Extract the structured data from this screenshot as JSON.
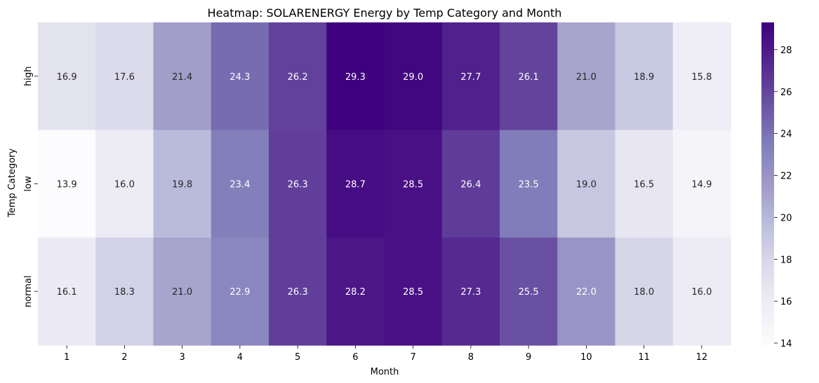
{
  "chart_data": {
    "type": "heatmap",
    "title": "Heatmap: SOLARENERGY Energy by Temp Category and Month",
    "xlabel": "Month",
    "ylabel": "Temp Category",
    "x_categories": [
      "1",
      "2",
      "3",
      "4",
      "5",
      "6",
      "7",
      "8",
      "9",
      "10",
      "11",
      "12"
    ],
    "y_categories": [
      "high",
      "low",
      "normal"
    ],
    "values": [
      [
        16.9,
        17.6,
        21.4,
        24.3,
        26.2,
        29.3,
        29.0,
        27.7,
        26.1,
        21.0,
        18.9,
        15.8
      ],
      [
        13.9,
        16.0,
        19.8,
        23.4,
        26.3,
        28.7,
        28.5,
        26.4,
        23.5,
        19.0,
        16.5,
        14.9
      ],
      [
        16.1,
        18.3,
        21.0,
        22.9,
        26.3,
        28.2,
        28.5,
        27.3,
        25.5,
        22.0,
        18.0,
        16.0
      ]
    ],
    "colorbar": {
      "min": 13.9,
      "max": 29.3,
      "ticks": [
        "14",
        "16",
        "18",
        "20",
        "22",
        "24",
        "26",
        "28"
      ],
      "colormap": "Purples"
    },
    "annotations": true,
    "grid": false
  }
}
